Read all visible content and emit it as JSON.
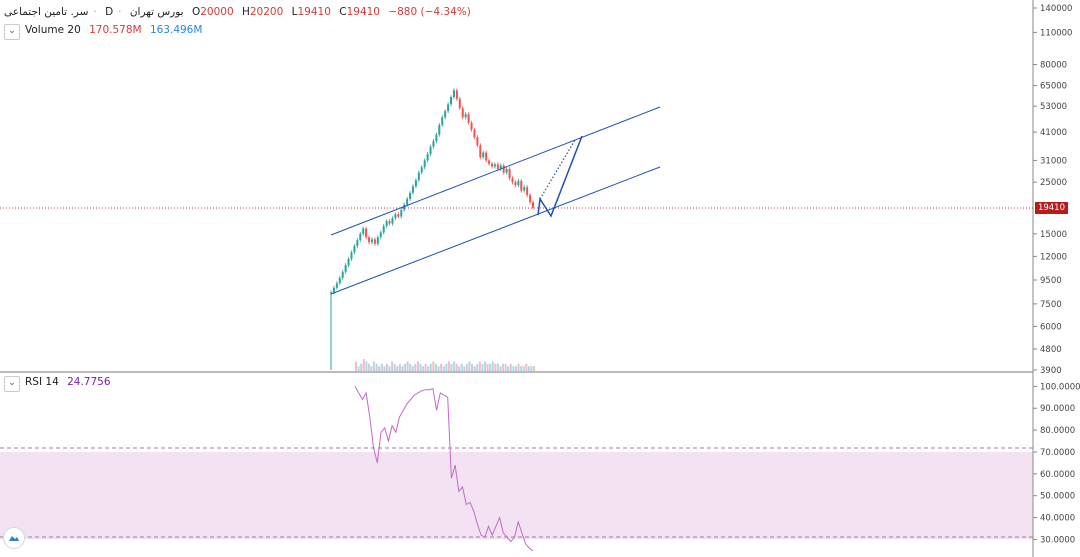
{
  "header": {
    "symbol_name": "سر. تامین اجتماعی",
    "interval": "D",
    "exchange": "بورس تهران",
    "open_label": "O",
    "open": "20000",
    "high_label": "H",
    "high": "20200",
    "low_label": "L",
    "low": "19410",
    "close_label": "C",
    "close": "19410",
    "change": "−880 (−4.34%)"
  },
  "volume_legend": {
    "label": "Volume 20",
    "value1": "170.578M",
    "value2": "163.496M"
  },
  "rsi_legend": {
    "label": "RSI 14",
    "value": "24.7756"
  },
  "last_price_label": "19410",
  "colors": {
    "up": "#26a69a",
    "down": "#ef5350",
    "trendline": "#1e50b4",
    "rsi": "#9c27b0",
    "rsi_band": "#f3e3f2",
    "price_line": "#d32f2f"
  },
  "chart_data": [
    {
      "type": "candlestick",
      "title": "سر. تامین اجتماعی",
      "y_scale": "log",
      "y_ticks": [
        140000,
        110000,
        80000,
        65000,
        53000,
        41000,
        31000,
        25000,
        15000,
        12000,
        9500,
        7500,
        6000,
        4800,
        3900
      ],
      "ylim": [
        3900,
        140000
      ],
      "last_price": 19410,
      "series": [
        {
          "name": "price",
          "values": [
            8400,
            8800,
            9200,
            9700,
            10300,
            11000,
            11700,
            12500,
            13300,
            14100,
            15000,
            15800,
            14500,
            13800,
            14200,
            13600,
            14500,
            15200,
            16200,
            17000,
            16600,
            17500,
            18200,
            17800,
            19000,
            20000,
            21200,
            22500,
            24000,
            25500,
            27500,
            29000,
            31000,
            33000,
            35500,
            37500,
            40000,
            44000,
            47500,
            50500,
            54000,
            58000,
            62000,
            57000,
            52000,
            47500,
            49000,
            45000,
            42000,
            39000,
            36000,
            32000,
            33500,
            31000,
            30000,
            29200,
            29800,
            28500,
            29500,
            27500,
            28500,
            26000,
            25000,
            24300,
            25300,
            23000,
            23800,
            22000,
            20500,
            19410
          ]
        }
      ]
    },
    {
      "type": "line",
      "title": "RSI 14",
      "ylim": [
        27,
        102
      ],
      "y_ticks": [
        100,
        90,
        80,
        70,
        60,
        50,
        40,
        30
      ],
      "band": [
        30,
        70
      ],
      "series": [
        {
          "name": "RSI 14",
          "values": [
            100,
            97,
            94,
            97,
            86,
            72,
            65,
            79,
            81,
            75,
            82,
            79,
            86,
            89,
            92,
            94,
            96,
            97,
            98,
            98.5,
            98.5,
            99,
            89,
            97,
            96,
            95,
            58,
            64,
            52,
            54,
            46,
            47,
            43,
            37,
            32,
            31,
            36,
            32,
            36,
            40,
            33,
            31,
            29,
            31,
            38,
            33,
            28,
            26,
            24.78
          ]
        }
      ]
    },
    {
      "type": "bar",
      "title": "Volume 20",
      "series": [
        {
          "name": "Volume 20",
          "values": [
            4,
            2,
            3,
            5,
            4,
            3,
            2,
            4,
            3,
            2,
            3,
            2,
            3,
            2,
            4,
            3,
            2,
            3,
            2,
            3,
            4,
            3,
            2,
            3,
            4,
            3,
            2,
            3,
            2,
            3,
            4,
            3,
            2,
            3,
            2,
            3,
            4,
            3,
            4,
            3,
            2,
            3,
            2,
            3,
            4,
            3,
            2,
            3,
            4,
            3,
            4,
            3,
            3,
            4,
            3,
            3,
            2,
            3,
            3,
            2,
            3,
            2,
            2,
            3,
            2,
            2,
            3,
            2,
            2,
            2
          ]
        }
      ]
    }
  ]
}
